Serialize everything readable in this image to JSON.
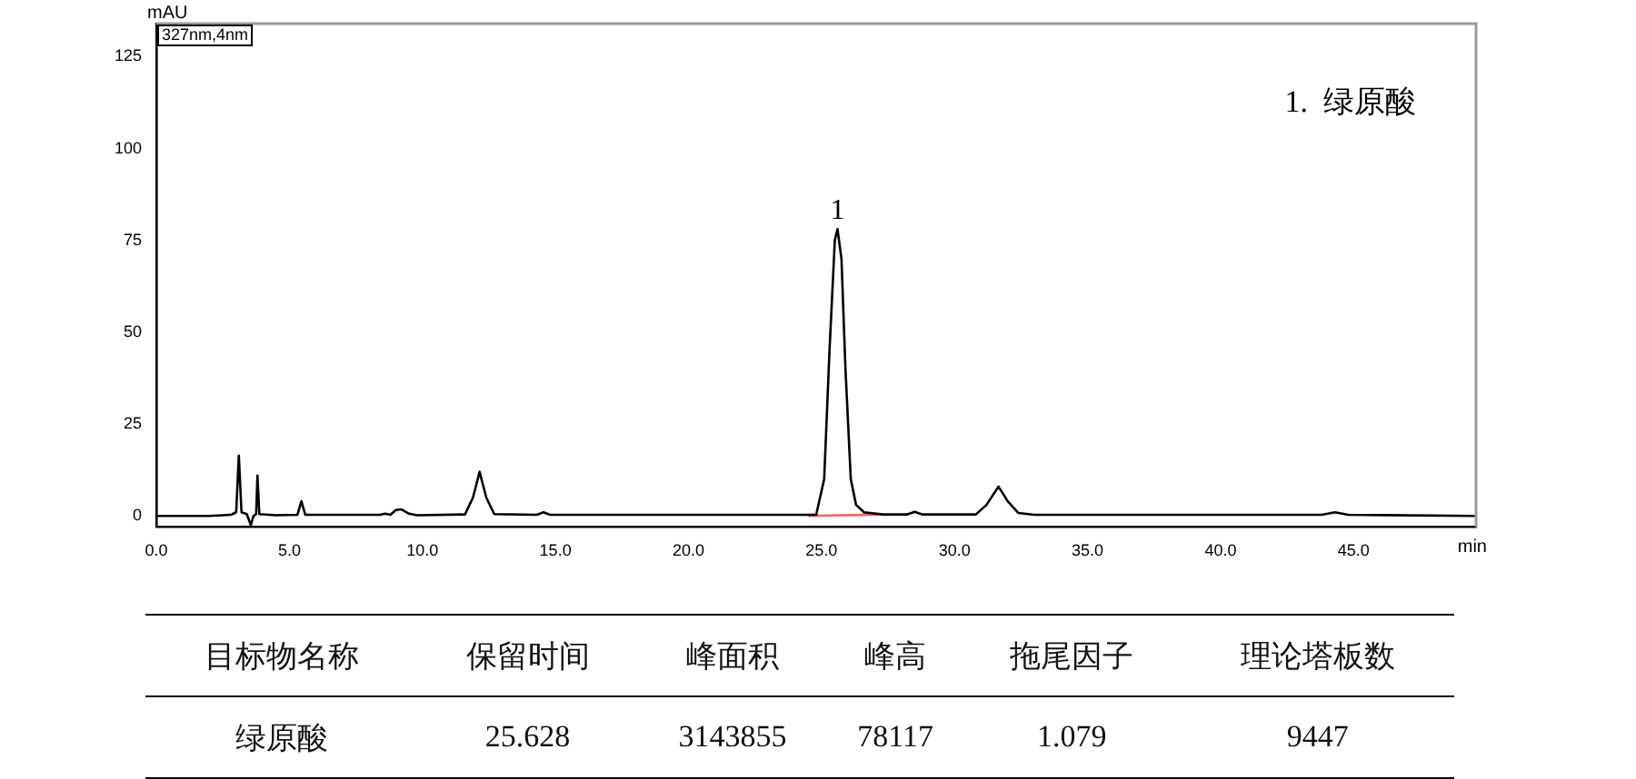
{
  "chart_data": {
    "type": "line",
    "xlabel": "min",
    "ylabel": "mAU",
    "xlim": [
      0,
      49.6
    ],
    "ylim": [
      -3,
      134
    ],
    "xticks": [
      {
        "value": 0,
        "label": "0.0"
      },
      {
        "value": 5,
        "label": "5.0"
      },
      {
        "value": 10,
        "label": "10.0"
      },
      {
        "value": 15,
        "label": "15.0"
      },
      {
        "value": 20,
        "label": "20.0"
      },
      {
        "value": 25,
        "label": "25.0"
      },
      {
        "value": 30,
        "label": "30.0"
      },
      {
        "value": 35,
        "label": "35.0"
      },
      {
        "value": 40,
        "label": "40.0"
      },
      {
        "value": 45,
        "label": "45.0"
      }
    ],
    "yticks": [
      0,
      25,
      50,
      75,
      100,
      125
    ],
    "grid": false,
    "legend": false,
    "marker": "none",
    "series": [
      {
        "color": "#000000",
        "x": [
          0,
          2.0,
          2.8,
          3.0,
          3.1,
          3.2,
          3.4,
          3.55,
          3.65,
          3.75,
          3.8,
          3.87,
          4.5,
          5.3,
          5.45,
          5.6,
          8.4,
          8.6,
          8.8,
          9.0,
          9.2,
          9.5,
          9.8,
          11.6,
          11.9,
          12.15,
          12.4,
          12.7,
          14.3,
          14.55,
          14.8,
          24.8,
          25.1,
          25.3,
          25.5,
          25.6,
          25.75,
          25.9,
          26.1,
          26.3,
          26.6,
          27.3,
          28.2,
          28.5,
          28.8,
          30.8,
          31.2,
          31.65,
          32.0,
          32.4,
          33,
          43.8,
          44.3,
          44.8,
          49.6
        ],
        "values": [
          0,
          0,
          0.3,
          1,
          16.4,
          1,
          0.5,
          -2.5,
          0,
          0.5,
          11,
          0.5,
          0.2,
          0.3,
          4,
          0.3,
          0.3,
          0.6,
          0.3,
          1.6,
          1.8,
          0.6,
          0.2,
          0.4,
          5,
          12,
          5,
          0.5,
          0.3,
          1,
          0.3,
          0.3,
          10,
          45,
          75,
          78.1,
          70,
          40,
          10,
          3,
          1,
          0.4,
          0.4,
          1.1,
          0.4,
          0.4,
          3,
          8,
          4,
          0.8,
          0.3,
          0.3,
          1,
          0.3,
          0
        ]
      },
      {
        "color": "#ff6060",
        "x": [
          24.5,
          27.3
        ],
        "values": [
          0,
          0.4
        ]
      }
    ],
    "annotations": [
      "327nm,4nm",
      "1.  绿原酸",
      {
        "text": "1",
        "x": 25.6,
        "y": 78.1
      },
      "目标物名称",
      "保留时间",
      "峰面积",
      "峰高",
      "拖尾因子",
      "理论塔板数",
      "绿原酸",
      "25.628",
      "3143855",
      "78117",
      "1.079",
      "9447"
    ]
  }
}
